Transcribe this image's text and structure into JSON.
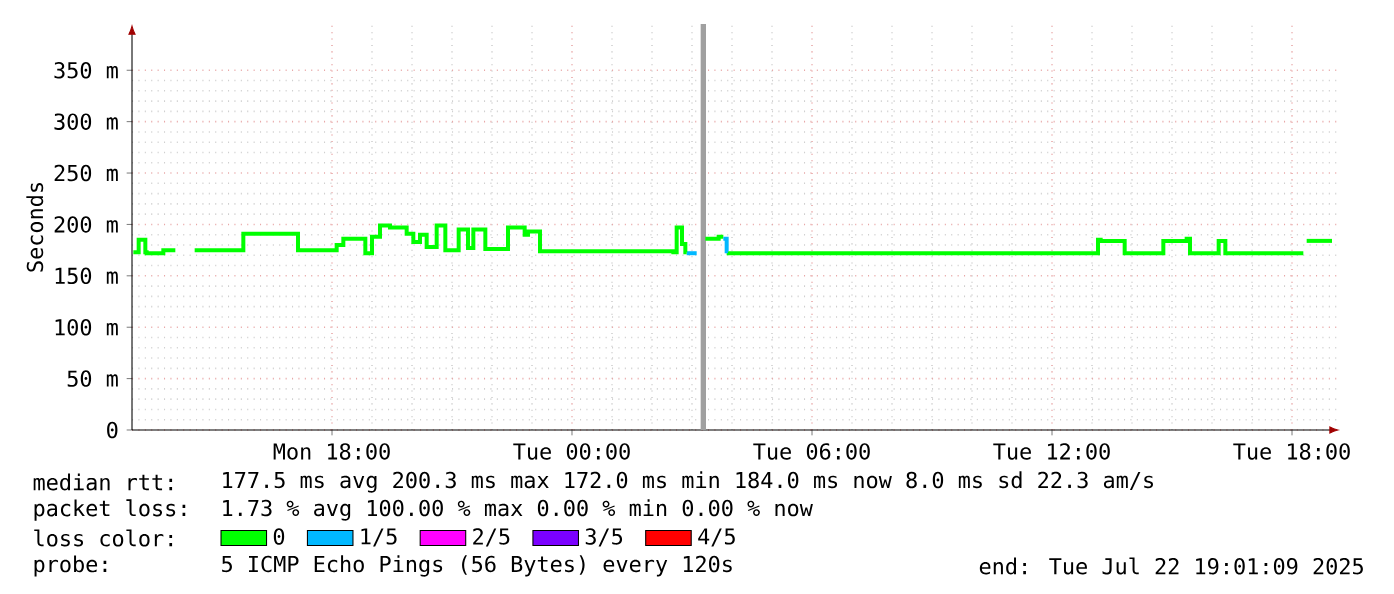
{
  "chart_data": {
    "type": "step",
    "ylabel": "Seconds",
    "legend_title": "loss color:",
    "legend": "bottom",
    "grid": true,
    "marker": "none",
    "xlim": [
      "2025-07-21T13:00",
      "2025-07-22T19:12"
    ],
    "ylim": [
      0,
      395
    ],
    "xticks": [
      {
        "value": "2025-07-21T18:00",
        "label": "Mon 18:00"
      },
      {
        "value": "2025-07-22T00:00",
        "label": "Tue 00:00"
      },
      {
        "value": "2025-07-22T06:00",
        "label": "Tue 06:00"
      },
      {
        "value": "2025-07-22T12:00",
        "label": "Tue 12:00"
      },
      {
        "value": "2025-07-22T18:00",
        "label": "Tue 18:00"
      }
    ],
    "yticks": [
      {
        "value": 0,
        "label": "0"
      },
      {
        "value": 50,
        "label": "50 m"
      },
      {
        "value": 100,
        "label": "100 m"
      },
      {
        "value": 150,
        "label": "150 m"
      },
      {
        "value": 200,
        "label": "200 m"
      },
      {
        "value": 250,
        "label": "250 m"
      },
      {
        "value": 300,
        "label": "300 m"
      },
      {
        "value": 350,
        "label": "350 m"
      }
    ],
    "series": [
      {
        "name": "0",
        "color": "#00ff00",
        "x": [
          "2025-07-21T13:02",
          "2025-07-21T13:10",
          "2025-07-21T13:20",
          "2025-07-21T13:22",
          "2025-07-21T13:47",
          "2025-07-21T14:05"
        ],
        "values": [
          173,
          185,
          173,
          172,
          175,
          175
        ]
      },
      {
        "name": "1/5",
        "color": "#00b8ff",
        "x": [
          "2025-07-22T02:52",
          "2025-07-22T03:07"
        ],
        "values": [
          172,
          172
        ]
      },
      {
        "name": "2/5",
        "color": "#ff00ff",
        "values": [
          null
        ]
      },
      {
        "name": "3/5",
        "color": "#7b00ff",
        "values": [
          null
        ]
      },
      {
        "name": "4/5",
        "color": "#ff0000",
        "values": [
          null
        ]
      },
      {
        "color": "#00ff00",
        "x": [
          "2025-07-21T14:34",
          "2025-07-21T15:47",
          "2025-07-21T17:09",
          "2025-07-21T18:07",
          "2025-07-21T18:17",
          "2025-07-21T18:50",
          "2025-07-21T19:00",
          "2025-07-21T19:12",
          "2025-07-21T19:27",
          "2025-07-21T19:52",
          "2025-07-21T20:02",
          "2025-07-21T20:12",
          "2025-07-21T20:22",
          "2025-07-21T20:37",
          "2025-07-21T20:50",
          "2025-07-21T21:10",
          "2025-07-21T21:24",
          "2025-07-21T21:32",
          "2025-07-21T21:50",
          "2025-07-21T22:24",
          "2025-07-21T22:49",
          "2025-07-21T22:54",
          "2025-07-21T23:12",
          "2025-07-22T02:32",
          "2025-07-22T02:37",
          "2025-07-22T02:45",
          "2025-07-22T02:50",
          "2025-07-22T02:52"
        ],
        "values": [
          175,
          191,
          175,
          180,
          186,
          172,
          188,
          199,
          197,
          191,
          183,
          190,
          178,
          199,
          175,
          195,
          177,
          195,
          176,
          197,
          190,
          193,
          174,
          173,
          197,
          181,
          173,
          173
        ]
      },
      {
        "color": "#00ff00",
        "x": [
          "2025-07-22T03:20",
          "2025-07-22T03:40",
          "2025-07-22T03:47"
        ],
        "values": [
          186,
          188,
          188
        ]
      },
      {
        "color": "#00ff00",
        "x": [
          "2025-07-22T03:52",
          "2025-07-22T13:09",
          "2025-07-22T13:13",
          "2025-07-22T13:49",
          "2025-07-22T14:47",
          "2025-07-22T15:22",
          "2025-07-22T15:27",
          "2025-07-22T16:10",
          "2025-07-22T16:20",
          "2025-07-22T18:17"
        ],
        "values": [
          172,
          185,
          184,
          172,
          184,
          186,
          172,
          184,
          172,
          172
        ]
      },
      {
        "color": "#00ff00",
        "x": [
          "2025-07-22T18:22",
          "2025-07-22T19:00"
        ],
        "values": [
          184,
          184
        ]
      },
      {
        "color": "#00b8ff",
        "x": [
          "2025-07-22T03:47",
          "2025-07-22T03:52",
          "2025-07-22T03:54"
        ],
        "values": [
          186,
          174,
          174
        ]
      }
    ],
    "ref_lines": [
      {
        "axis": "x",
        "value": "2025-07-22T03:17",
        "color": "#a0a0a0"
      }
    ],
    "annotations": [
      "median rtt:",
      "177.5 ms avg  200.3 ms max  172.0 ms min  184.0 ms now  8.0 ms sd  22.3  am/s",
      "packet loss:",
      "1.73 % avg  100.00 % max  0.00 % min  0.00 % now",
      "probe:",
      "5 ICMP Echo Pings (56 Bytes) every 120s",
      "end: Tue Jul 22 19:01:09 2025"
    ]
  }
}
